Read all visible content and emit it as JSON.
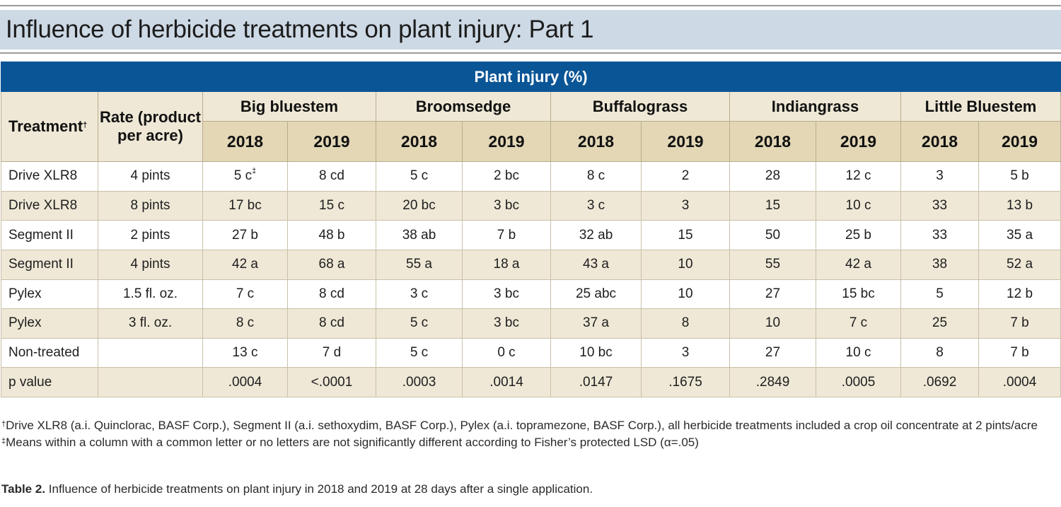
{
  "title": "Influence of herbicide treatments on plant injury: Part 1",
  "table": {
    "banner": "Plant injury (%)",
    "treatment_header": "Treatment",
    "treatment_mark": "†",
    "rate_header": "Rate (product per acre)",
    "species": [
      "Big bluestem",
      "Broomsedge",
      "Buffalograss",
      "Indiangrass",
      "Little Bluestem"
    ],
    "years": [
      "2018",
      "2019"
    ],
    "rows": [
      {
        "treatment": "Drive XLR8",
        "rate": "4 pints",
        "values": [
          "5 c",
          "8 cd",
          "5 c",
          "2 bc",
          "8 c",
          "2",
          "28",
          "12 c",
          "3",
          "5 b"
        ]
      },
      {
        "treatment": "Drive XLR8",
        "rate": "8 pints",
        "values": [
          "17 bc",
          "15 c",
          "20 bc",
          "3 bc",
          "3 c",
          "3",
          "15",
          "10 c",
          "33",
          "13 b"
        ]
      },
      {
        "treatment": "Segment II",
        "rate": "2 pints",
        "values": [
          "27 b",
          "48 b",
          "38 ab",
          "7 b",
          "32 ab",
          "15",
          "50",
          "25 b",
          "33",
          "35 a"
        ]
      },
      {
        "treatment": "Segment II",
        "rate": "4 pints",
        "values": [
          "42 a",
          "68 a",
          "55 a",
          "18 a",
          "43 a",
          "10",
          "55",
          "42 a",
          "38",
          "52 a"
        ]
      },
      {
        "treatment": "Pylex",
        "rate": "1.5 fl. oz.",
        "values": [
          "7 c",
          "8 cd",
          "3 c",
          "3 bc",
          "25 abc",
          "10",
          "27",
          "15 bc",
          "5",
          "12 b"
        ]
      },
      {
        "treatment": "Pylex",
        "rate": "3 fl. oz.",
        "values": [
          "8 c",
          "8 cd",
          "5 c",
          "3 bc",
          "37 a",
          "8",
          "10",
          "7 c",
          "25",
          "7 b"
        ]
      },
      {
        "treatment": "Non-treated",
        "rate": "",
        "values": [
          "13 c",
          "7 d",
          "5 c",
          "0 c",
          "10 bc",
          "3",
          "27",
          "10 c",
          "8",
          "7 b"
        ]
      },
      {
        "treatment": "p value",
        "rate": "",
        "values": [
          ".0004",
          "<.0001",
          ".0003",
          ".0014",
          ".0147",
          ".1675",
          ".2849",
          ".0005",
          ".0692",
          ".0004"
        ]
      }
    ],
    "first_cell_mark": "‡"
  },
  "footnotes": {
    "dagger": "†",
    "dagger_text": "Drive XLR8 (a.i. Quinclorac, BASF Corp.), Segment II (a.i. sethoxydim, BASF Corp.), Pylex (a.i. topramezone, BASF Corp.), all herbicide treatments included a crop oil concentrate at 2 pints/acre",
    "ddagger": "‡",
    "ddagger_text": "Means within a column with a common letter or no letters are not significantly different according to Fisher’s protected LSD (α=.05)"
  },
  "caption": {
    "label": "Table 2.",
    "text": " Influence of herbicide treatments on plant injury in 2018 and 2019 at 28 days after a single application."
  },
  "colors": {
    "banner": "#0a5596",
    "title_band": "#cdd9e5",
    "header_tan": "#efe8d6",
    "year_tan": "#e3d7b6"
  }
}
